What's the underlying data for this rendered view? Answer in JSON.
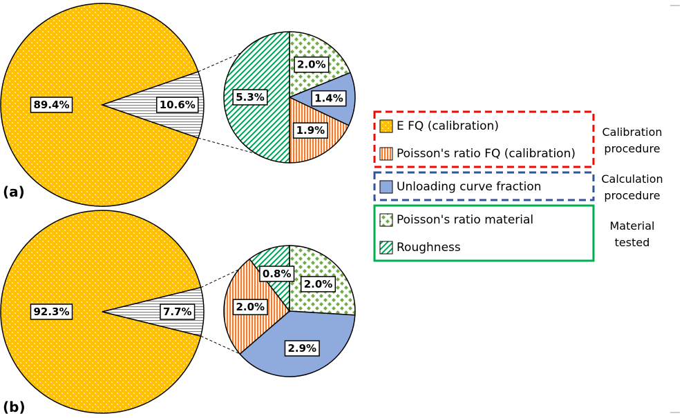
{
  "legend": {
    "series": [
      {
        "name": "E FQ (calibration)",
        "color": "#ffc000",
        "pattern": "dots"
      },
      {
        "name": "Poisson's ratio FQ (calibration)",
        "color": "#ed7d31",
        "pattern": "vstripes"
      },
      {
        "name": "Unloading curve fraction",
        "color": "#8faadc",
        "pattern": "solid"
      },
      {
        "name": "Poisson's ratio material",
        "color": "#70ad47",
        "pattern": "diamonds"
      },
      {
        "name": "Roughness",
        "color": "#00a050",
        "pattern": "diagonal"
      }
    ],
    "groups": [
      {
        "label": "Calibration procedure",
        "color": "#ff0000",
        "line": "dashed",
        "members": [
          0,
          1
        ]
      },
      {
        "label": "Calculation procedure",
        "color": "#2f5597",
        "line": "dashed",
        "members": [
          2
        ]
      },
      {
        "label": "Material tested",
        "color": "#00b050",
        "line": "solid",
        "members": [
          3,
          4
        ]
      }
    ]
  },
  "other_slice": {
    "color": "#808080",
    "pattern": "hlines"
  },
  "chart_data": [
    {
      "type": "pie-of-pie",
      "label": "(a)",
      "main": {
        "values": [
          89.4,
          10.6
        ],
        "value_labels": [
          "89.4%",
          "10.6%"
        ]
      },
      "detail": {
        "series": [
          3,
          2,
          1,
          4
        ],
        "values": [
          2.0,
          1.4,
          1.9,
          5.3
        ],
        "value_labels": [
          "2.0%",
          "1.4%",
          "1.9%",
          "5.3%"
        ]
      }
    },
    {
      "type": "pie-of-pie",
      "label": "(b)",
      "main": {
        "values": [
          92.3,
          7.7
        ],
        "value_labels": [
          "92.3%",
          "7.7%"
        ]
      },
      "detail": {
        "series": [
          3,
          2,
          1,
          4
        ],
        "values": [
          2.0,
          2.9,
          2.0,
          0.8
        ],
        "value_labels": [
          "2.0%",
          "2.9%",
          "2.0%",
          "0.8%"
        ]
      }
    }
  ]
}
